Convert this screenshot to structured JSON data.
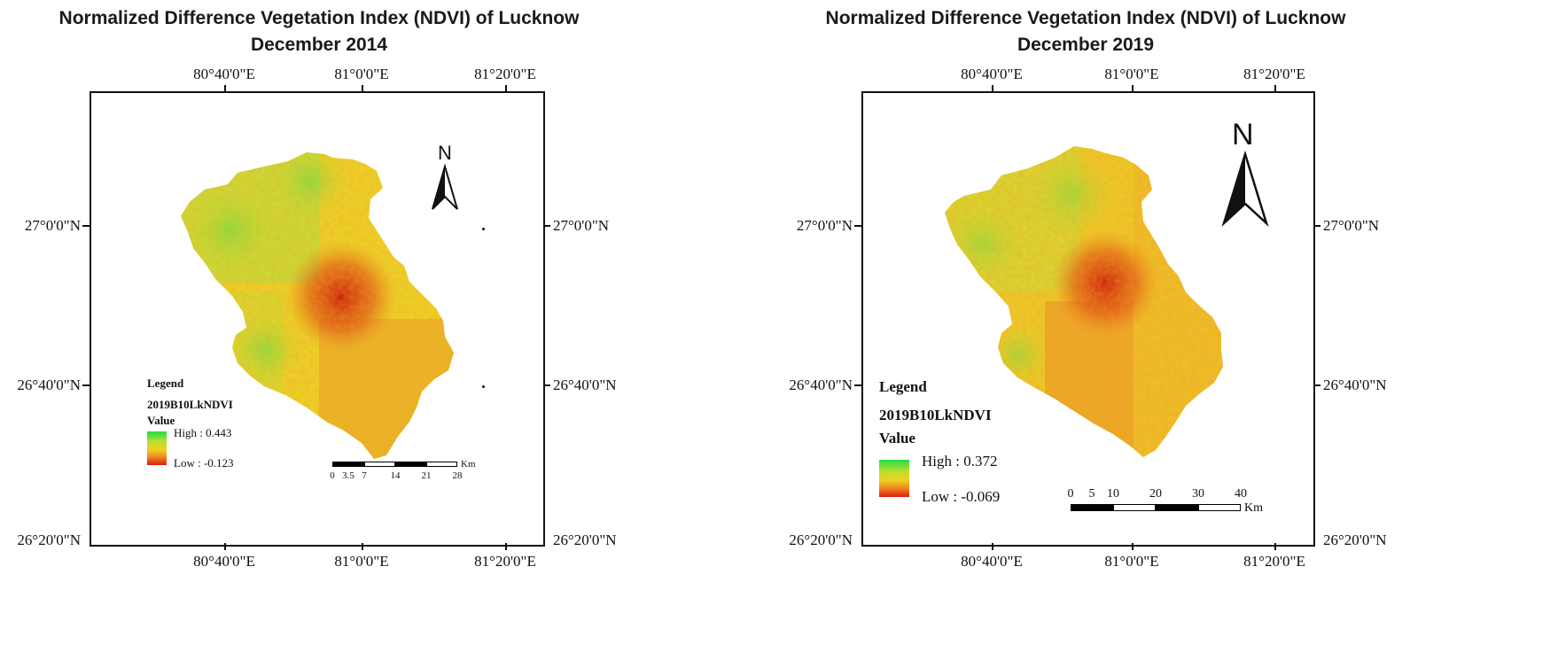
{
  "maps": [
    {
      "title_line1": "Normalized Difference Vegetation Index (NDVI) of Lucknow",
      "title_line2": "December 2014",
      "lon_labels": [
        "80°40'0\"E",
        "81°0'0\"E",
        "81°20'0\"E"
      ],
      "lat_labels": [
        "27°0'0\"N",
        "26°40'0\"N",
        "26°20'0\"N"
      ],
      "north_label": "N",
      "legend": {
        "title": "Legend",
        "layer": "2019B10LkNDVI",
        "value_label": "Value",
        "high": "High : 0.443",
        "low": "Low : -0.123"
      },
      "scale": {
        "ticks": [
          "0",
          "3.5",
          "7",
          "14",
          "21",
          "28"
        ],
        "unit": "Km"
      }
    },
    {
      "title_line1": "Normalized Difference Vegetation Index (NDVI) of Lucknow",
      "title_line2": "December 2019",
      "lon_labels": [
        "80°40'0\"E",
        "81°0'0\"E",
        "81°20'0\"E"
      ],
      "lat_labels": [
        "27°0'0\"N",
        "26°40'0\"N",
        "26°20'0\"N"
      ],
      "north_label": "N",
      "legend": {
        "title": "Legend",
        "layer": "2019B10LkNDVI",
        "value_label": "Value",
        "high": "High : 0.372",
        "low": "Low : -0.069"
      },
      "scale": {
        "ticks": [
          "0",
          "5",
          "10",
          "20",
          "30",
          "40"
        ],
        "unit": "Km"
      }
    }
  ],
  "colors": {
    "ndvi_high": "#22dd44",
    "ndvi_mid": "#f0d020",
    "ndvi_low": "#dd1a10"
  }
}
